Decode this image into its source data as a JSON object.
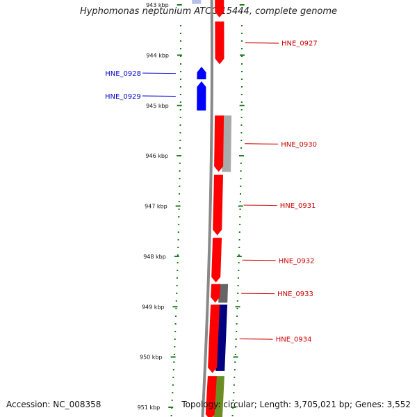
{
  "title": "Hyphomonas neptunium ATCC 15444, complete genome",
  "footer": {
    "accession": "Accession: NC_008358",
    "summary": "Topology: circular; Length: 3,705,021 bp; Genes: 3,552"
  },
  "ticks": [
    {
      "label": "943 kbp",
      "pos": 943
    },
    {
      "label": "944 kbp",
      "pos": 944
    },
    {
      "label": "945 kbp",
      "pos": 945
    },
    {
      "label": "946 kbp",
      "pos": 946
    },
    {
      "label": "947 kbp",
      "pos": 947
    },
    {
      "label": "948 kbp",
      "pos": 948
    },
    {
      "label": "949 kbp",
      "pos": 949
    },
    {
      "label": "950 kbp",
      "pos": 950
    },
    {
      "label": "951 kbp",
      "pos": 951
    }
  ],
  "colors": {
    "forward": "#ff0000",
    "reverse": "#0000ff",
    "backbone": "#888888",
    "tick": "#1a7a1a",
    "grey_feature": "#aaaaaa",
    "dark_grey_feature": "#666666",
    "navy_feature": "#000080",
    "olive_feature": "#6b8e23"
  },
  "genes": [
    {
      "name": "",
      "strand": "forward",
      "start": 942.72,
      "end": 943.25
    },
    {
      "name": "HNE_0927",
      "strand": "forward",
      "start": 943.33,
      "end": 944.18
    },
    {
      "name": "HNE_0928",
      "strand": "reverse",
      "start": 944.23,
      "end": 944.48
    },
    {
      "name": "HNE_0929",
      "strand": "reverse",
      "start": 944.52,
      "end": 945.1
    },
    {
      "name": "HNE_0930",
      "strand": "forward",
      "start": 945.2,
      "end": 946.32
    },
    {
      "name": "HNE_0931",
      "strand": "forward",
      "start": 946.38,
      "end": 947.58
    },
    {
      "name": "HNE_0932",
      "strand": "forward",
      "start": 947.63,
      "end": 948.52
    },
    {
      "name": "HNE_0933",
      "strand": "forward",
      "start": 948.55,
      "end": 948.92
    },
    {
      "name": "HNE_0934",
      "strand": "forward",
      "start": 948.96,
      "end": 950.32
    },
    {
      "name": "",
      "strand": "forward",
      "start": 950.38,
      "end": 951.25
    }
  ],
  "other_features": [
    {
      "color": "grey_feature",
      "start": 945.2,
      "end": 946.32
    },
    {
      "color": "dark_grey_feature",
      "start": 948.55,
      "end": 948.92
    },
    {
      "color": "navy_feature",
      "start": 948.96,
      "end": 950.28
    },
    {
      "color": "olive_feature",
      "start": 950.38,
      "end": 951.25
    },
    {
      "color": "reverse",
      "start": 942.72,
      "end": 942.98
    }
  ]
}
